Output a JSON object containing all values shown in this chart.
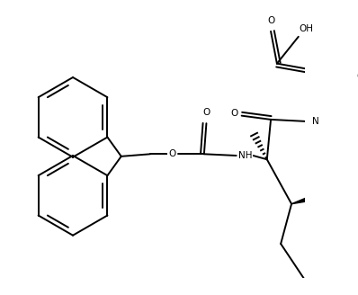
{
  "bg": "#ffffff",
  "lc": "#000000",
  "lw": 1.4,
  "fs": 7.5,
  "figsize": [
    3.98,
    3.28
  ],
  "dpi": 100,
  "xlim": [
    0,
    398
  ],
  "ylim": [
    0,
    328
  ]
}
